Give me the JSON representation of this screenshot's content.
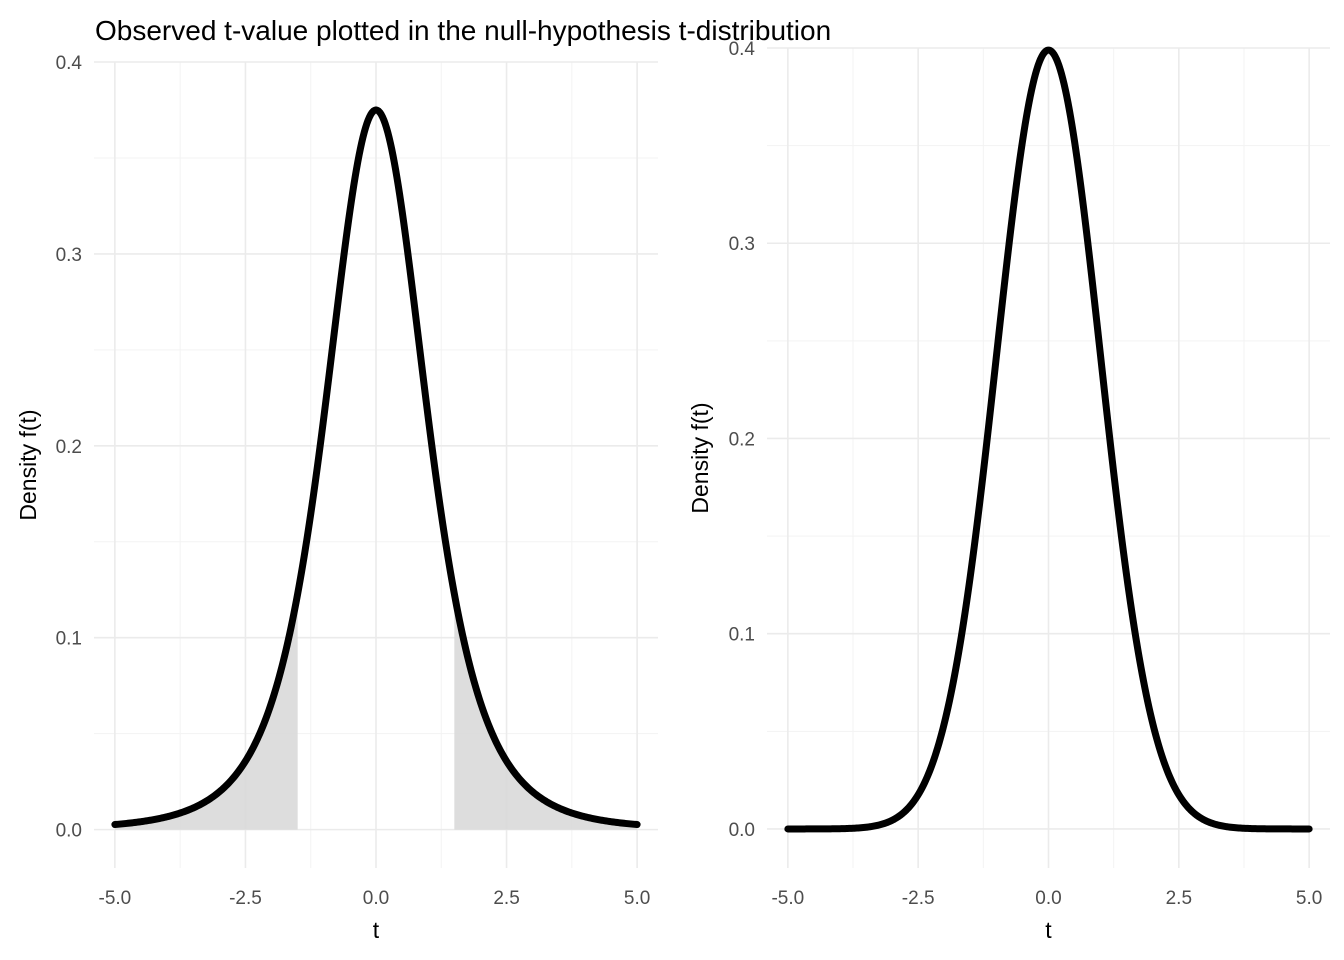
{
  "title": "Observed t-value plotted in the null-hypothesis t-distribution",
  "chart_data": [
    {
      "type": "area",
      "name": "left-panel",
      "distribution": "student-t",
      "df": 4,
      "x_range": [
        -5,
        5
      ],
      "xlabel": "t",
      "ylabel": "Density f(t)",
      "xlim": [
        -5.4,
        5.4
      ],
      "ylim": [
        -0.02,
        0.4
      ],
      "x_ticks": [
        -5,
        -2.5,
        0,
        2.5,
        5
      ],
      "x_tick_labels": [
        "-5.0",
        "-2.5",
        "0.0",
        "2.5",
        "5.0"
      ],
      "y_ticks": [
        0,
        0.1,
        0.2,
        0.3,
        0.4
      ],
      "y_tick_labels": [
        "0.0",
        "0.1",
        "0.2",
        "0.3",
        "0.4"
      ],
      "shaded_tails": {
        "left": [
          -5,
          -1.5
        ],
        "right": [
          1.5,
          5
        ]
      },
      "grid": true,
      "line_color": "#000000",
      "shade_color": "#d9d9d9"
    },
    {
      "type": "line",
      "name": "right-panel",
      "distribution": "normal",
      "mean": 0,
      "sd": 1,
      "x_range": [
        -5,
        5
      ],
      "xlabel": "t",
      "ylabel": "Density f(t)",
      "xlim": [
        -5.4,
        5.4
      ],
      "ylim": [
        -0.02,
        0.4
      ],
      "x_ticks": [
        -5,
        -2.5,
        0,
        2.5,
        5
      ],
      "x_tick_labels": [
        "-5.0",
        "-2.5",
        "0.0",
        "2.5",
        "5.0"
      ],
      "y_ticks": [
        0,
        0.1,
        0.2,
        0.3,
        0.4
      ],
      "y_tick_labels": [
        "0.0",
        "0.1",
        "0.2",
        "0.3",
        "0.4"
      ],
      "grid": true,
      "line_color": "#000000"
    }
  ]
}
